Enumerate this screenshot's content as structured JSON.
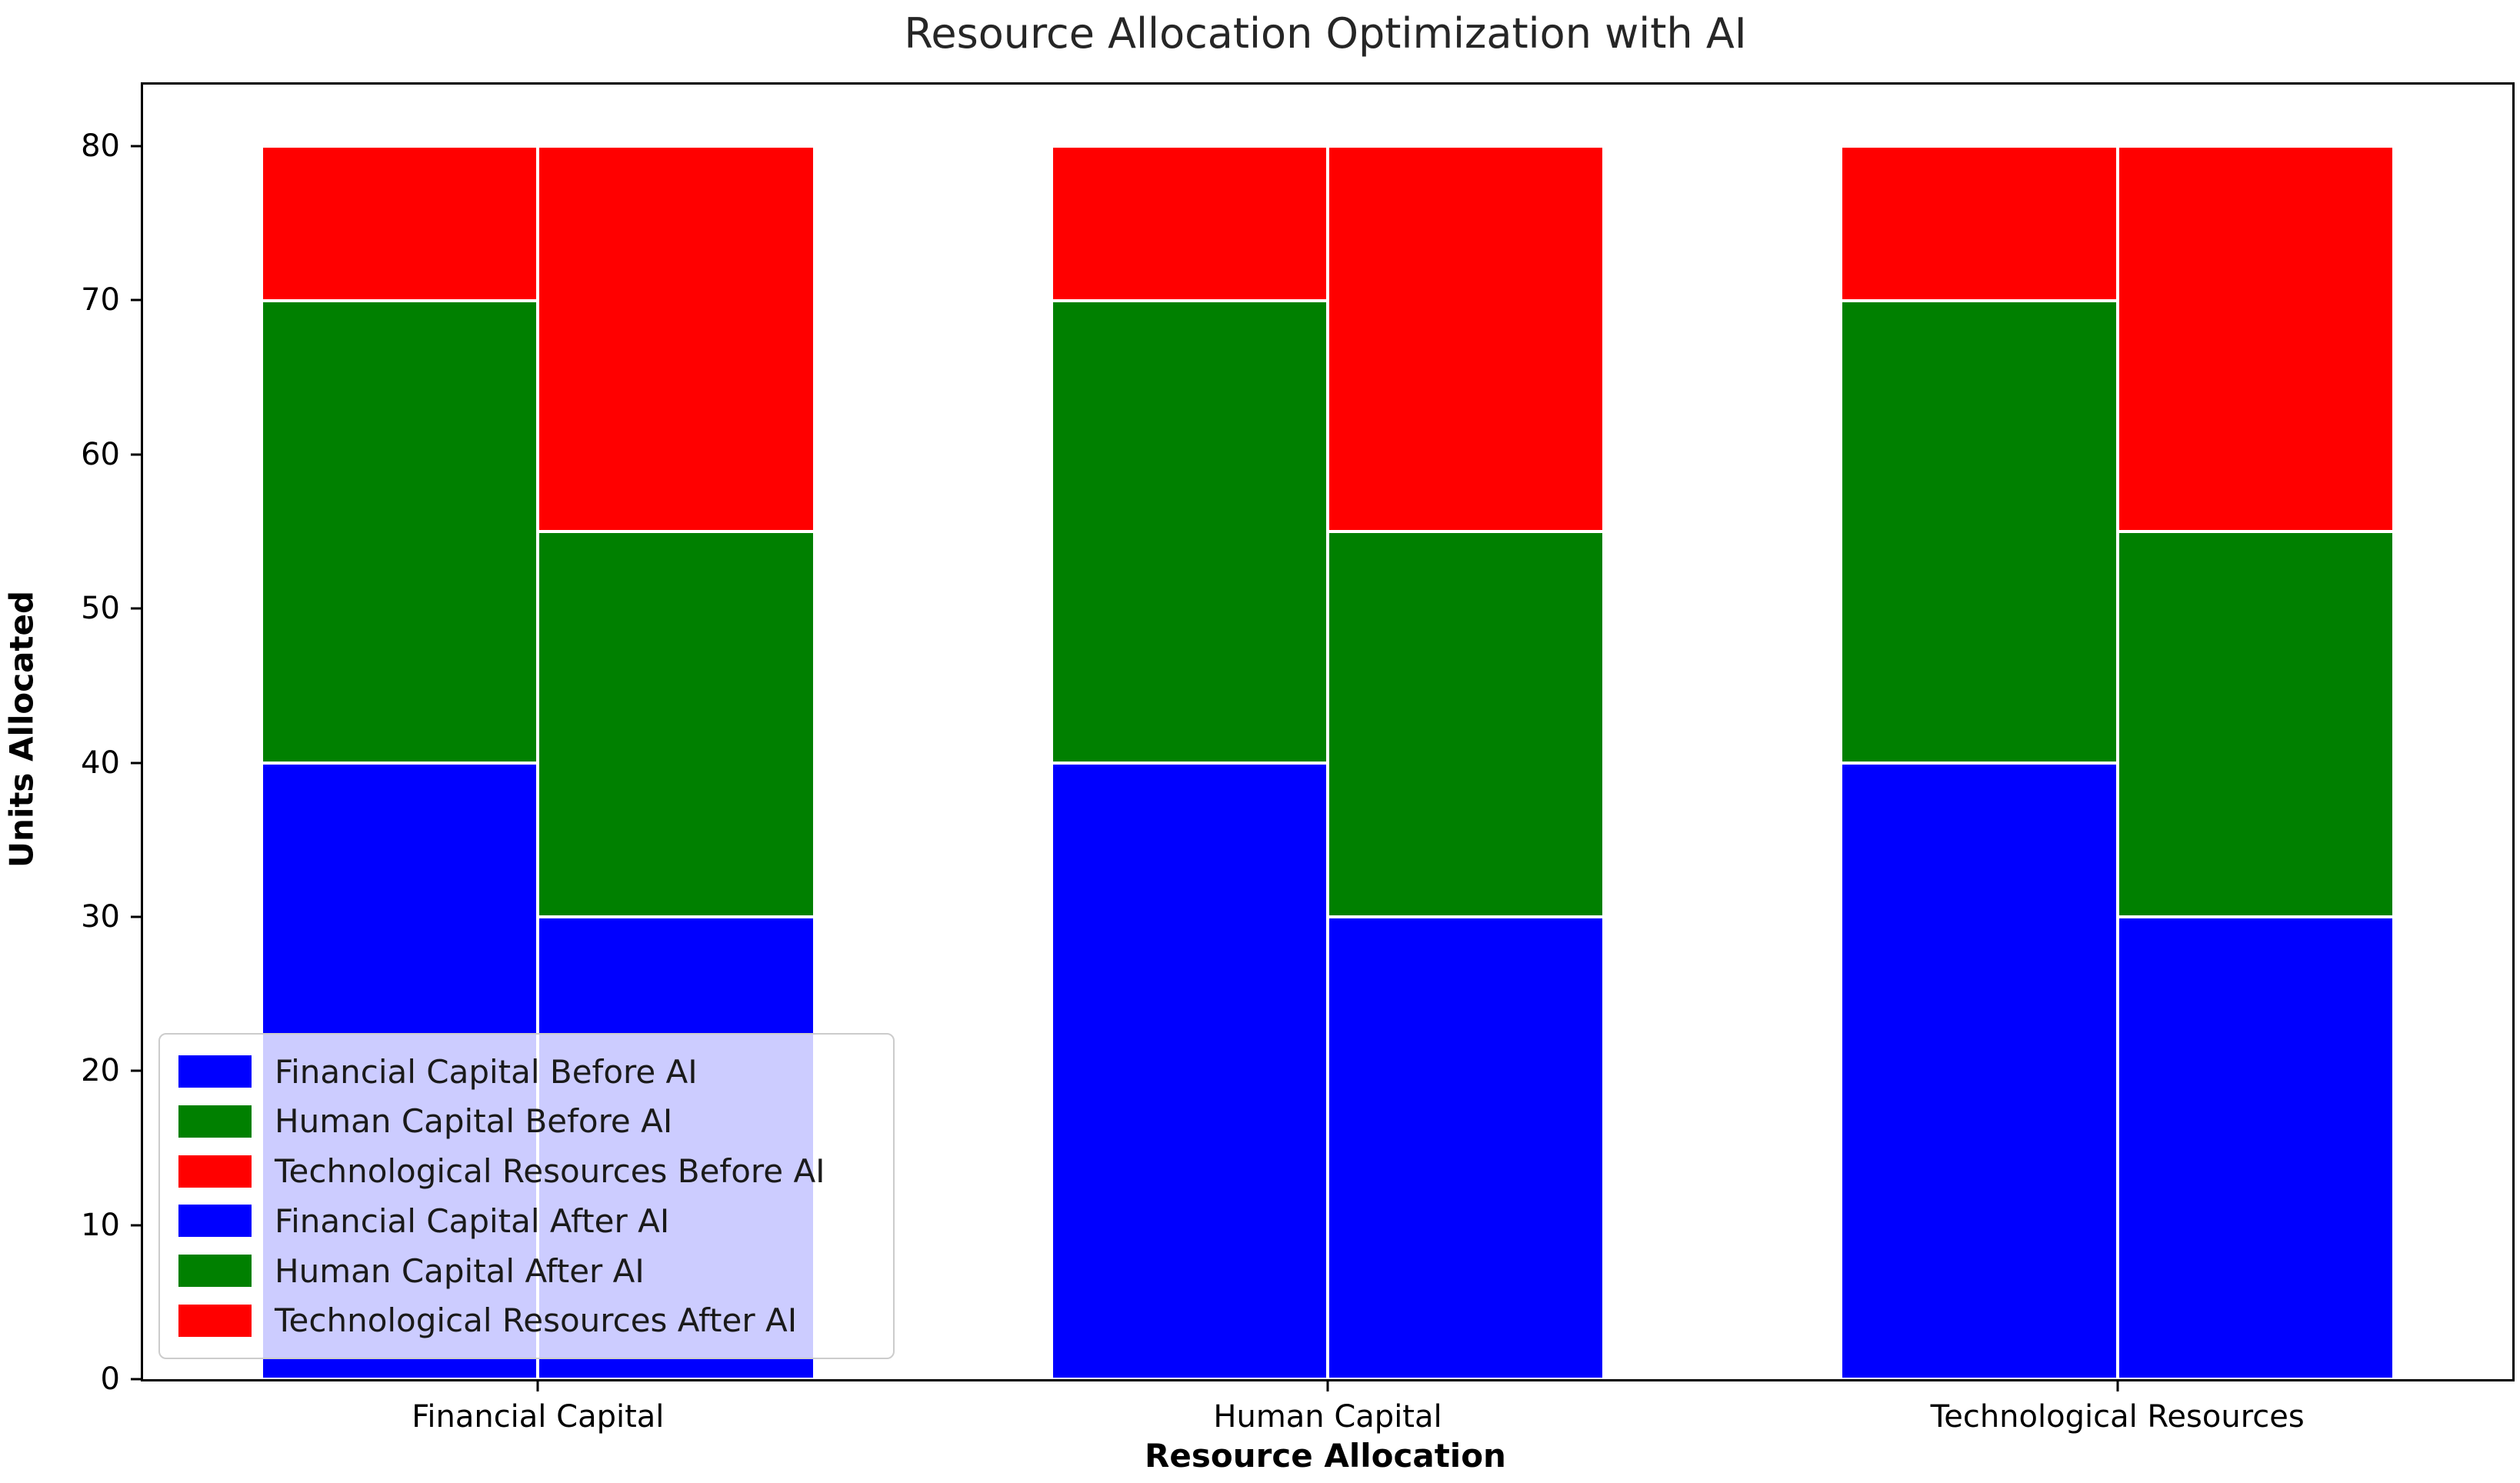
{
  "figure": {
    "title": "Resource Allocation Optimization with AI",
    "xlabel": "Resource Allocation",
    "ylabel": "Units Allocated"
  },
  "colors": {
    "financial_capital": "#0000ff",
    "human_capital": "#008000",
    "technological_resources": "#ff0000",
    "bar_edge": "#ffffff",
    "axis": "#000000",
    "legend_border": "#cccccc"
  },
  "chart_data": {
    "type": "bar",
    "variant": "grouped-stacked",
    "title": "Resource Allocation Optimization with AI",
    "xlabel": "Resource Allocation",
    "ylabel": "Units Allocated",
    "categories": [
      "Financial Capital",
      "Human Capital",
      "Technological Resources"
    ],
    "xlim": [
      -0.5,
      2.5
    ],
    "ylim": [
      0,
      84
    ],
    "yticks": [
      0,
      10,
      20,
      30,
      40,
      50,
      60,
      70,
      80
    ],
    "bar_width": 0.35,
    "grid": false,
    "legend_position": "lower left",
    "groups": [
      {
        "name": "Before AI",
        "offset": -0.175,
        "stack": [
          {
            "name": "Financial Capital Before AI",
            "color": "#0000ff",
            "values": [
              40,
              40,
              40
            ]
          },
          {
            "name": "Human Capital Before AI",
            "color": "#008000",
            "values": [
              30,
              30,
              30
            ]
          },
          {
            "name": "Technological Resources Before AI",
            "color": "#ff0000",
            "values": [
              10,
              10,
              10
            ]
          }
        ]
      },
      {
        "name": "After AI",
        "offset": 0.175,
        "stack": [
          {
            "name": "Financial Capital After AI",
            "color": "#0000ff",
            "values": [
              30,
              30,
              30
            ]
          },
          {
            "name": "Human Capital After AI",
            "color": "#008000",
            "values": [
              25,
              25,
              25
            ]
          },
          {
            "name": "Technological Resources After AI",
            "color": "#ff0000",
            "values": [
              25,
              25,
              25
            ]
          }
        ]
      }
    ],
    "legend_entries": [
      {
        "label": "Financial Capital Before AI",
        "color": "#0000ff"
      },
      {
        "label": "Human Capital Before AI",
        "color": "#008000"
      },
      {
        "label": "Technological Resources Before AI",
        "color": "#ff0000"
      },
      {
        "label": "Financial Capital After AI",
        "color": "#0000ff"
      },
      {
        "label": "Human Capital After AI",
        "color": "#008000"
      },
      {
        "label": "Technological Resources After AI",
        "color": "#ff0000"
      }
    ]
  }
}
